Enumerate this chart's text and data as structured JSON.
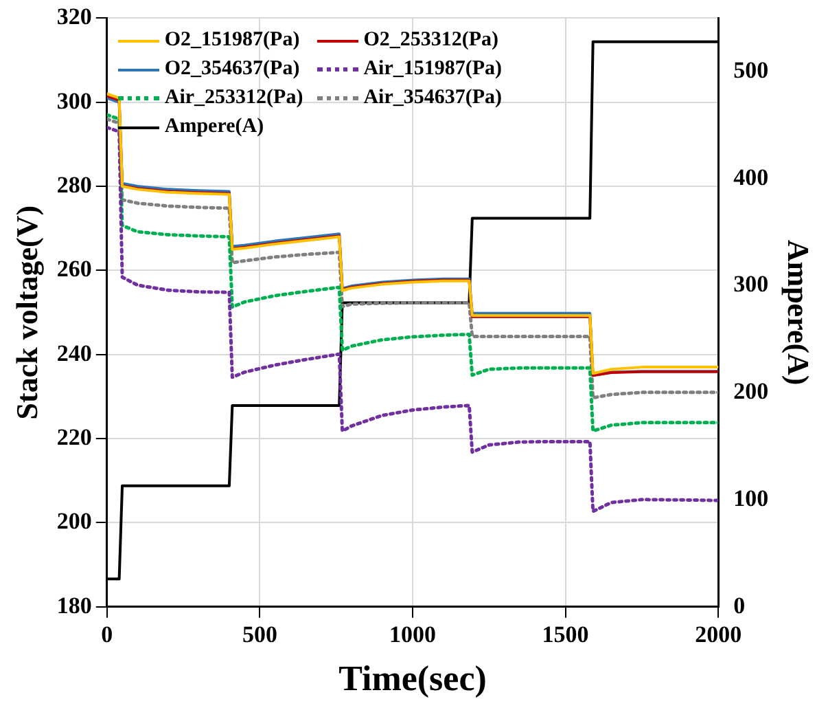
{
  "chart_data": {
    "type": "line",
    "xlabel": "Time(sec)",
    "ylabel": "Stack voltage(V)",
    "y2label": "Ampere(A)",
    "x": [
      0,
      40,
      50,
      100,
      200,
      300,
      400,
      410,
      450,
      550,
      650,
      760,
      770,
      800,
      900,
      1000,
      1100,
      1185,
      1195,
      1250,
      1350,
      1450,
      1580,
      1590,
      1650,
      1750,
      1900,
      2000
    ],
    "series": [
      {
        "name": "O2_151987(Pa)",
        "color": "#ffc000",
        "values": [
          302,
          301,
          280,
          279.3,
          278.6,
          278.3,
          278.1,
          265,
          265.3,
          266.3,
          267.1,
          268,
          255.2,
          255.8,
          256.7,
          257.2,
          257.5,
          257.5,
          249.3,
          249.3,
          249.3,
          249.3,
          249.3,
          235.5,
          236.5,
          237,
          237,
          237
        ]
      },
      {
        "name": "O2_253312(Pa)",
        "color": "#c00000",
        "values": [
          301.5,
          300.5,
          280.2,
          279.5,
          278.8,
          278.5,
          278.3,
          265.2,
          265.5,
          266.5,
          267.3,
          268.2,
          255.4,
          256,
          256.9,
          257.4,
          257.7,
          257.7,
          249,
          249,
          249,
          249,
          249,
          235,
          235.7,
          235.9,
          235.9,
          235.9
        ]
      },
      {
        "name": "O2_354637(Pa)",
        "color": "#2e75b6",
        "values": [
          301,
          300,
          280.7,
          280,
          279.3,
          279,
          278.8,
          265.7,
          266,
          267,
          267.8,
          268.7,
          255.7,
          256.3,
          257.2,
          257.7,
          258,
          258,
          249.8,
          249.8,
          249.8,
          249.8,
          249.8,
          235.1,
          235.8,
          236,
          236,
          236
        ]
      },
      {
        "name": "Air_151987(Pa)",
        "color": "#7030a0",
        "line_style": "dotted",
        "values": [
          294,
          293,
          258.4,
          256.5,
          255.3,
          254.9,
          254.8,
          234.6,
          235.8,
          237.5,
          238.8,
          240.1,
          221.8,
          223,
          225.5,
          226.8,
          227.5,
          227.9,
          216.8,
          218.5,
          219.2,
          219.3,
          219.3,
          202.7,
          204.8,
          205.5,
          205.4,
          205.3
        ]
      },
      {
        "name": "Air_253312(Pa)",
        "color": "#00b050",
        "line_style": "dotted",
        "values": [
          297,
          296,
          270.7,
          269.2,
          268.5,
          268.2,
          268,
          251.3,
          252.5,
          254,
          255,
          256,
          241,
          242,
          243.5,
          244.2,
          244.6,
          244.8,
          235.1,
          236.5,
          236.8,
          236.8,
          236.8,
          221.8,
          223.2,
          223.8,
          223.8,
          223.8
        ]
      },
      {
        "name": "Air_354637(Pa)",
        "color": "#808080",
        "line_style": "dotted",
        "values": [
          296,
          295,
          276.8,
          276,
          275.3,
          275,
          274.8,
          261.8,
          262.3,
          263.2,
          263.8,
          264.3,
          251.4,
          252,
          252.2,
          252.3,
          252.3,
          252.3,
          244.3,
          244.3,
          244.3,
          244.3,
          244.3,
          229.7,
          230.5,
          231,
          231,
          231
        ]
      },
      {
        "name": "Ampere(A)",
        "color": "#000000",
        "axis": "y2",
        "values": [
          26,
          26,
          113,
          113,
          113,
          113,
          113,
          188,
          188,
          188,
          188,
          188,
          284,
          284,
          284,
          284,
          284,
          284,
          363,
          363,
          363,
          363,
          363,
          528,
          528,
          528,
          528,
          528
        ]
      }
    ],
    "xlim": [
      0,
      2000
    ],
    "xticks": [
      0,
      500,
      1000,
      1500,
      2000
    ],
    "ylim": [
      180,
      320
    ],
    "yticks": [
      180,
      200,
      220,
      240,
      260,
      280,
      300,
      320
    ],
    "y2lim": [
      0,
      550
    ],
    "y2ticks": [
      0,
      100,
      200,
      300,
      400,
      500
    ],
    "grid": true,
    "legend": "top left",
    "marker": "none"
  }
}
